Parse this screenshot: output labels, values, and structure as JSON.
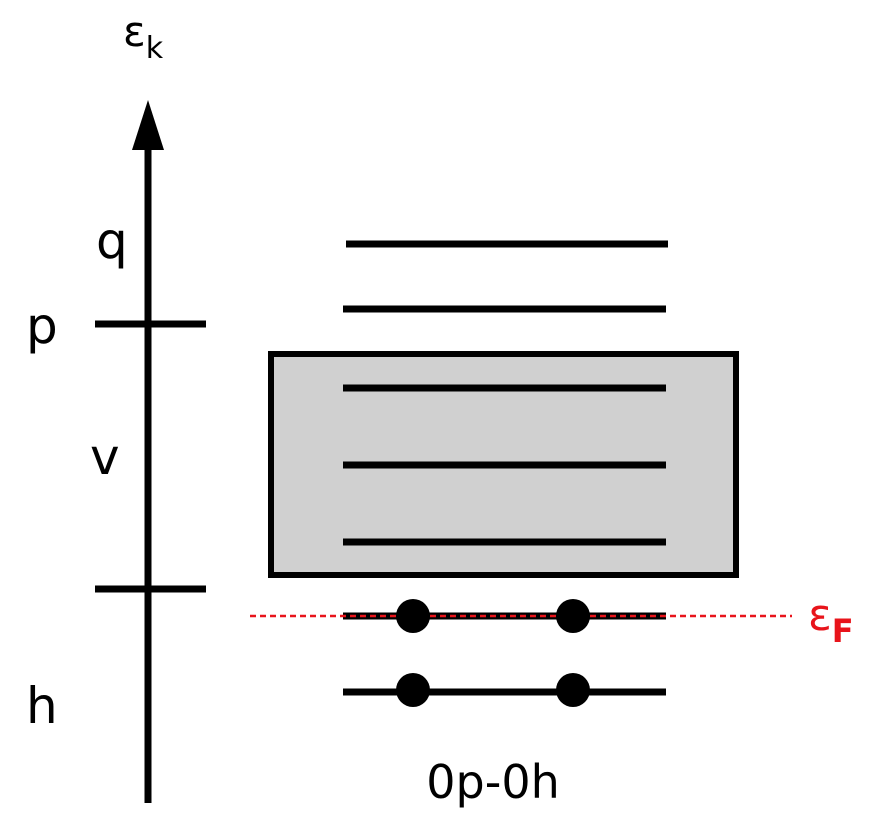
{
  "axis": {
    "label_main": "ε",
    "label_sub": "k"
  },
  "region_labels": {
    "q": "q",
    "p": "p",
    "v": "v",
    "h": "h"
  },
  "fermi": {
    "label_main": "ε",
    "label_sub": "F",
    "color": "#e8141b"
  },
  "configuration_label": "0p-0h",
  "colors": {
    "line": "#000000",
    "box_fill": "#d0d0d0",
    "box_stroke": "#000000"
  },
  "occupancy": {
    "levels_total": 7,
    "fermi_level_particles": 2,
    "lowest_level_particles": 2
  }
}
